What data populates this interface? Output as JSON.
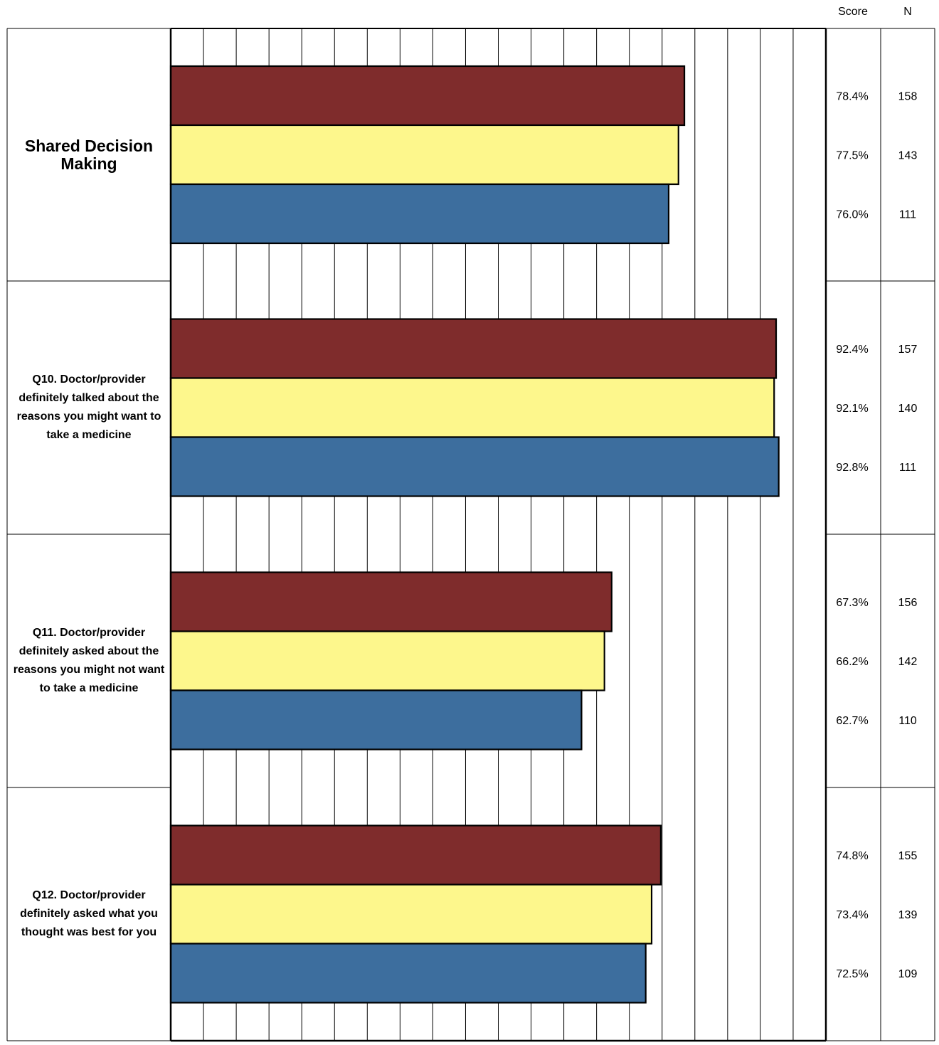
{
  "chart_data": {
    "type": "bar",
    "orientation": "horizontal",
    "columns": {
      "score_header": "Score",
      "n_header": "N"
    },
    "xlim": [
      0,
      100
    ],
    "grid": true,
    "categories": [
      "Shared Decision Making",
      "Q10. Doctor/provider definitely talked about the reasons you might want to take a medicine",
      "Q11. Doctor/provider definitely asked about the reasons you might not want to take a medicine",
      "Q12. Doctor/provider definitely asked what you thought was best for you"
    ],
    "series": [
      {
        "color": "#7f2c2c",
        "values": [
          78.4,
          92.4,
          67.3,
          74.8
        ],
        "labels": [
          "78.4%",
          "92.4%",
          "67.3%",
          "74.8%"
        ],
        "n": [
          "158",
          "157",
          "156",
          "155"
        ]
      },
      {
        "color": "#fdf78c",
        "values": [
          77.5,
          92.1,
          66.2,
          73.4
        ],
        "labels": [
          "77.5%",
          "92.1%",
          "66.2%",
          "73.4%"
        ],
        "n": [
          "143",
          "140",
          "142",
          "139"
        ]
      },
      {
        "color": "#3d6e9e",
        "values": [
          76.0,
          92.8,
          62.7,
          72.5
        ],
        "labels": [
          "76.0%",
          "92.8%",
          "62.7%",
          "72.5%"
        ],
        "n": [
          "111",
          "111",
          "110",
          "109"
        ]
      }
    ]
  }
}
